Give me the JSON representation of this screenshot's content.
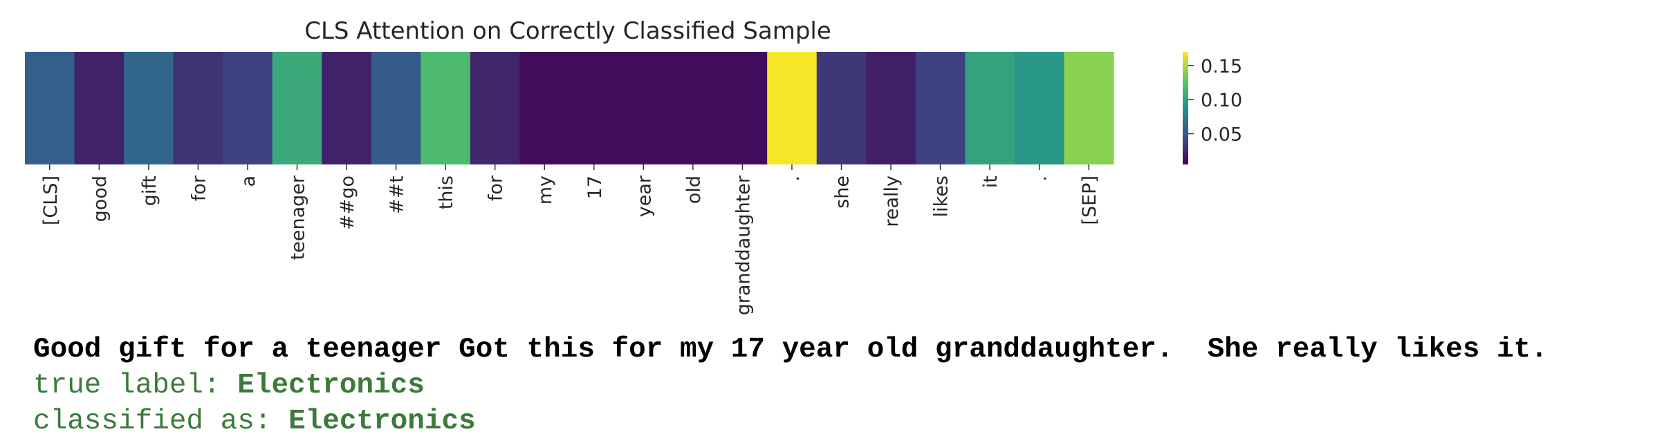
{
  "chart_data": {
    "type": "heatmap",
    "title": "CLS Attention on Correctly Classified Sample",
    "colormap": "viridis",
    "tokens": [
      "[CLS]",
      "good",
      "gift",
      "for",
      "a",
      "teenager",
      "##go",
      "##t",
      "this",
      "for",
      "my",
      "17",
      "year",
      "old",
      "granddaughter",
      ".",
      "she",
      "really",
      "likes",
      "it",
      ".",
      "[SEP]"
    ],
    "values": [
      0.055,
      0.022,
      0.06,
      0.03,
      0.038,
      0.105,
      0.022,
      0.052,
      0.118,
      0.024,
      0.01,
      0.01,
      0.01,
      0.01,
      0.01,
      0.168,
      0.033,
      0.02,
      0.038,
      0.1,
      0.092,
      0.14
    ],
    "colorbar": {
      "min": 0.005,
      "max": 0.17,
      "ticks": [
        0.05,
        0.1,
        0.15
      ],
      "tick_labels": [
        "0.05",
        "0.10",
        "0.15"
      ]
    }
  },
  "sample": {
    "text": "Good gift for a teenager Got this for my 17 year old granddaughter.  She really likes it.",
    "true_label_prefix": "true label: ",
    "true_label": "Electronics",
    "classified_prefix": "classified as: ",
    "classified_label": "Electronics"
  }
}
